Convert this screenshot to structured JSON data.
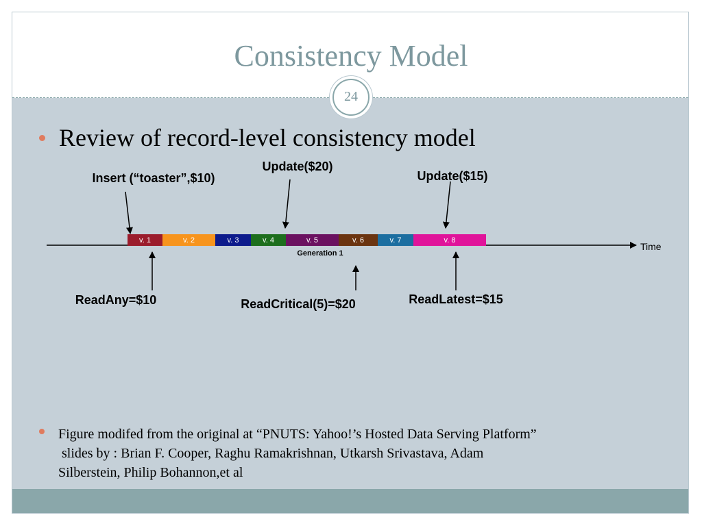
{
  "slide": {
    "title": "Consistency Model",
    "page_number": "24",
    "bullet_main": "Review of record-level consistency model",
    "footnote_lines": [
      "Figure modifed from the original at “PNUTS: Yahoo!’s Hosted Data Serving Platform”",
      " slides by : Brian F. Cooper, Raghu Ramakrishnan, Utkarsh Srivastava, Adam",
      "Silberstein, Philip Bohannon,et al"
    ]
  },
  "diagram": {
    "axis_label": "Time",
    "generation_label": "Generation 1",
    "versions": [
      {
        "label": "v. 1",
        "color": "#9b1c2c"
      },
      {
        "label": "v. 2",
        "color": "#f7941d"
      },
      {
        "label": "v. 3",
        "color": "#0d1b8c"
      },
      {
        "label": "v. 4",
        "color": "#1d6e1d"
      },
      {
        "label": "v. 5",
        "color": "#6b1160"
      },
      {
        "label": "v. 6",
        "color": "#6b3410"
      },
      {
        "label": "v. 7",
        "color": "#1c6ea0"
      },
      {
        "label": "v. 8",
        "color": "#e0149a"
      }
    ],
    "writes": [
      {
        "label": "Insert (“toaster”,$10)",
        "target_version": 1
      },
      {
        "label": "Update($20)",
        "target_version": 4
      },
      {
        "label": "Update($15)",
        "target_version": 8
      }
    ],
    "reads": [
      {
        "label": "ReadAny=$10",
        "target_version": 1
      },
      {
        "label": "ReadCritical(5)=$20",
        "target_version": 6
      },
      {
        "label": "ReadLatest=$15",
        "target_version": 8
      }
    ]
  },
  "colors": {
    "title": "#7d989e",
    "content_bg": "#c5d0d8",
    "footer_band": "#8aa7aa",
    "bullet": "#e07b5e"
  }
}
